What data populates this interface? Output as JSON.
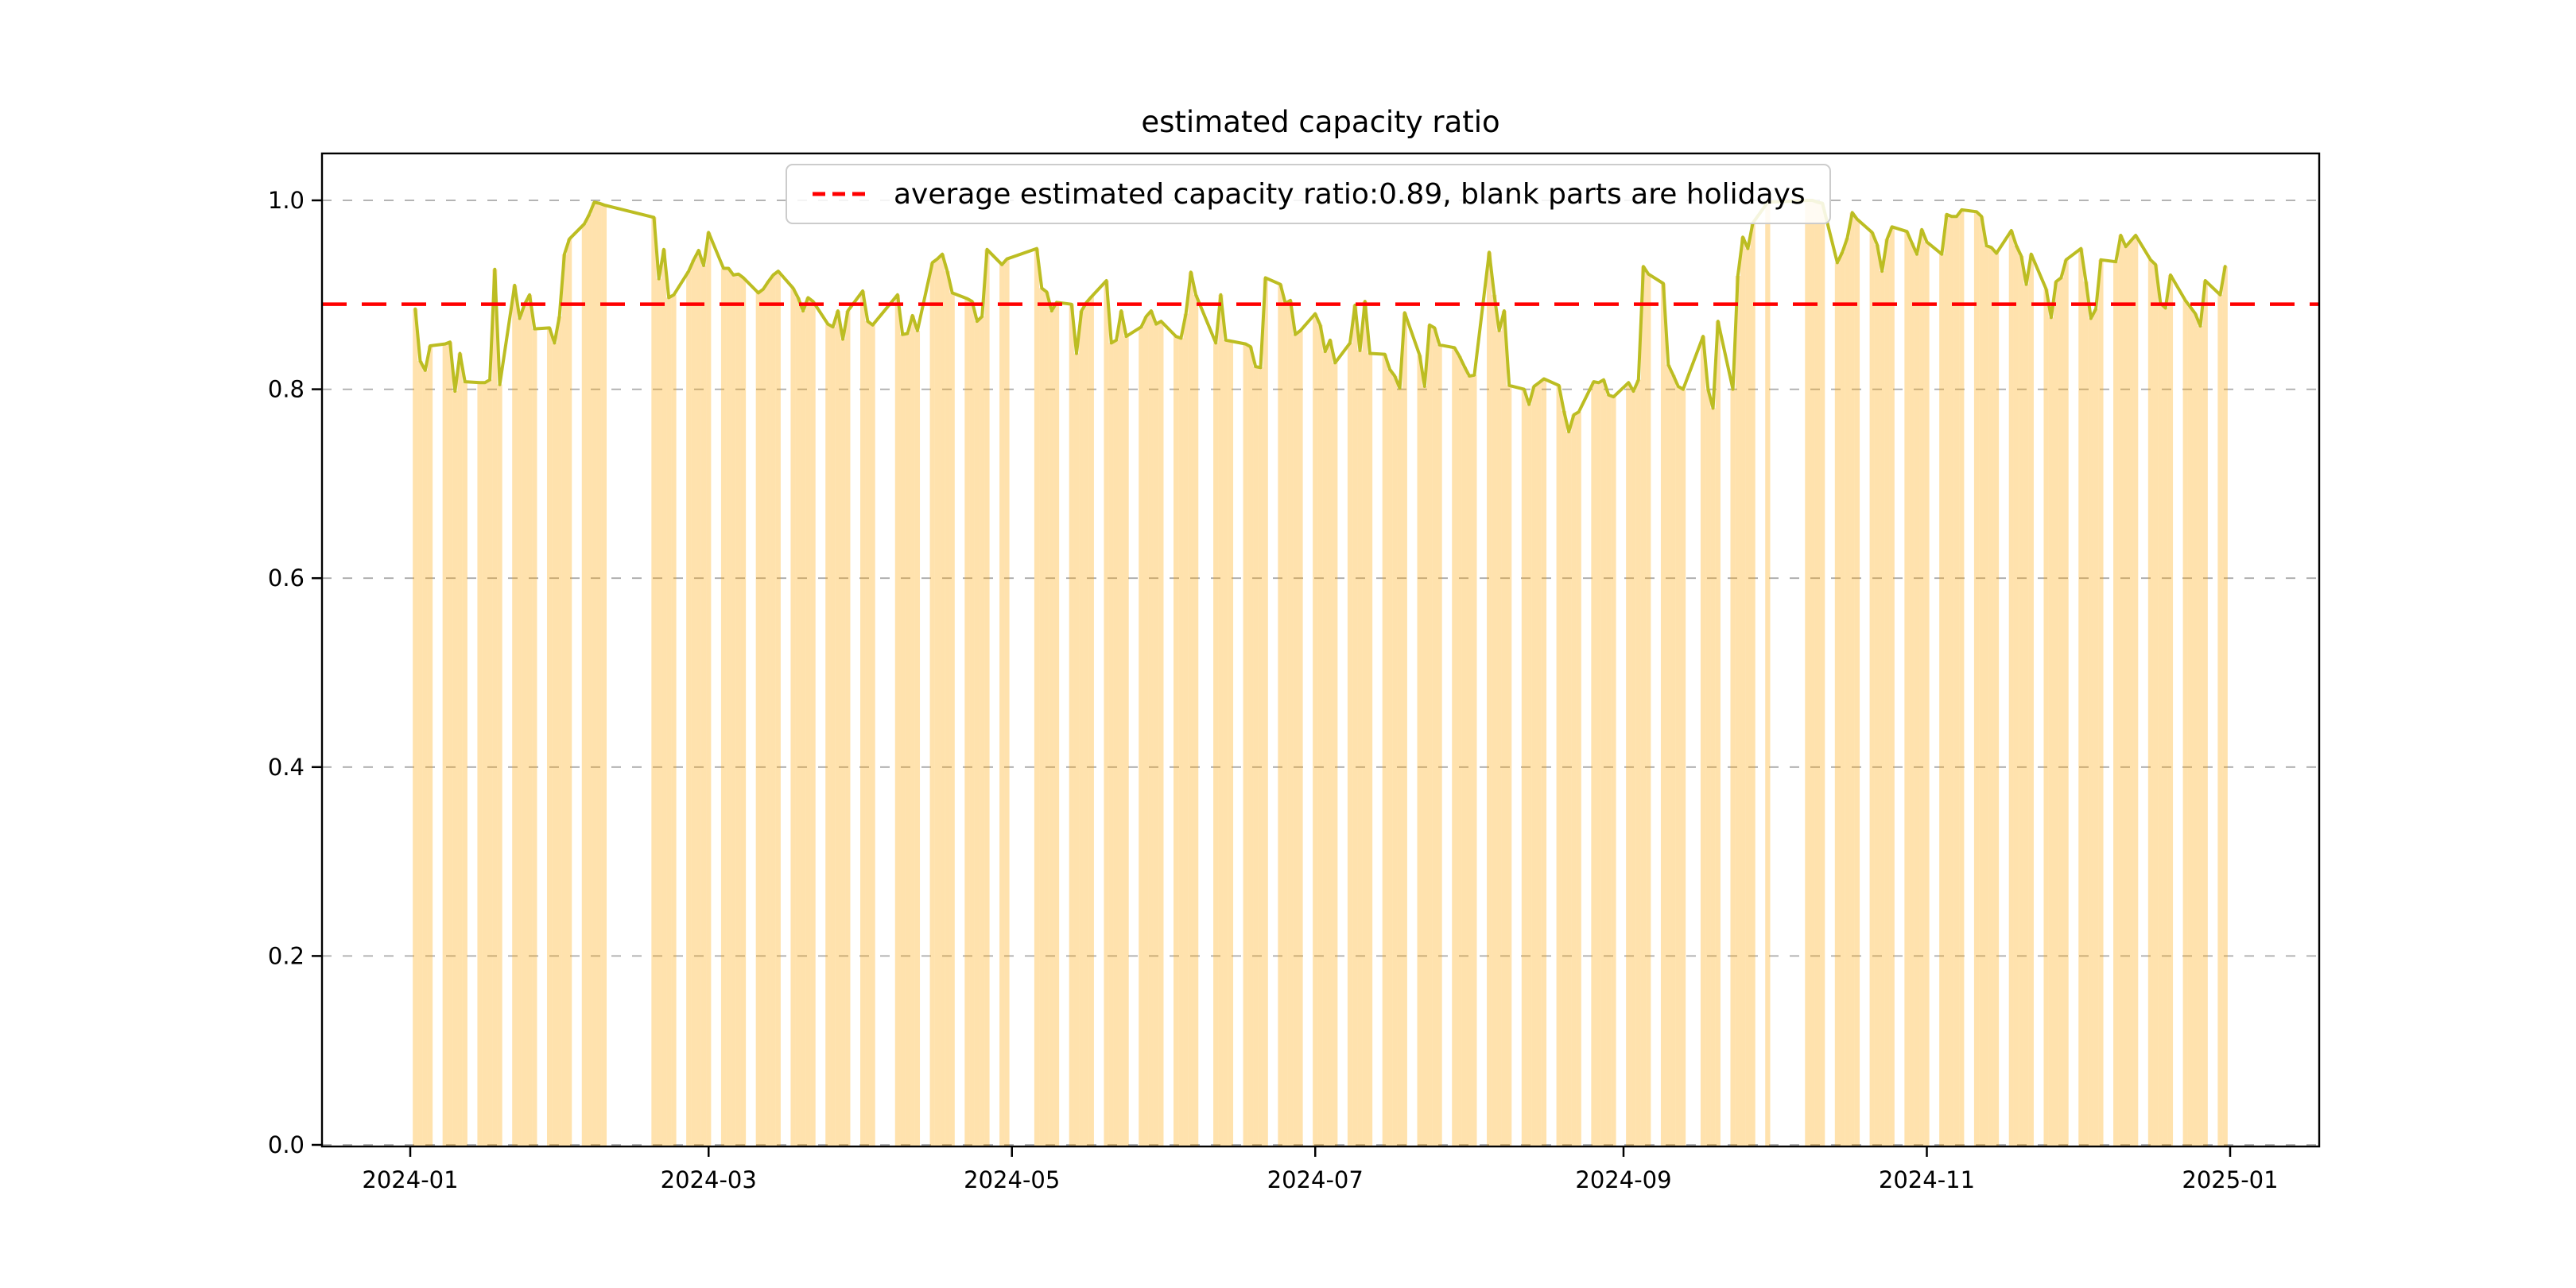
{
  "title": "estimated capacity ratio",
  "legend": {
    "label": "average estimated capacity ratio:0.89, blank parts are holidays"
  },
  "average_line": {
    "value": 0.89,
    "color": "#ff0000"
  },
  "style": {
    "bar_color": "#ffa500",
    "bar_opacity": 0.32,
    "line_color": "#bcbd22",
    "grid_color": "#aaaaaa",
    "spine_color": "#000000",
    "tick_label_color": "#000000"
  },
  "axes": {
    "ylim": [
      0,
      1.05
    ],
    "y_ticks": [
      0.0,
      0.2,
      0.4,
      0.6,
      0.8,
      1.0
    ],
    "y_tick_labels": [
      "0.0",
      "0.2",
      "0.4",
      "0.6",
      "0.8",
      "1.0"
    ],
    "x_tick_labels": [
      "2024-01",
      "2024-03",
      "2024-05",
      "2024-07",
      "2024-09",
      "2024-11",
      "2025-01"
    ],
    "x_tick_dates": [
      "2024-01-01",
      "2024-03-01",
      "2024-05-01",
      "2024-07-01",
      "2024-09-01",
      "2024-11-01",
      "2025-01-01"
    ],
    "grid": "horizontal dashed"
  },
  "chart_data": {
    "type": "bar+line",
    "title": "estimated capacity ratio",
    "x_start": "2024-01-01",
    "x_end": "2025-01-01",
    "series_name": "daily estimated capacity ratio (orange bars with olive line on top)",
    "average": 0.89,
    "holidays_blank": [
      "2024-01-01",
      "2024-02-10 to 2024-02-18",
      "2024-04-04 to 2024-04-05",
      "2024-05-01 to 2024-05-03",
      "2024-06-08 to 2024-06-10",
      "2024-09-14 to 2024-09-16",
      "2024-10-01 to 2024-10-07",
      "all Saturdays and Sundays"
    ],
    "points": [
      [
        "2024-01-02",
        0.885
      ],
      [
        "2024-01-03",
        0.83
      ],
      [
        "2024-01-04",
        0.82
      ],
      [
        "2024-01-05",
        0.846
      ],
      [
        "2024-01-08",
        0.848
      ],
      [
        "2024-01-09",
        0.85
      ],
      [
        "2024-01-10",
        0.798
      ],
      [
        "2024-01-11",
        0.838
      ],
      [
        "2024-01-12",
        0.808
      ],
      [
        "2024-01-15",
        0.807
      ],
      [
        "2024-01-16",
        0.807
      ],
      [
        "2024-01-17",
        0.81
      ],
      [
        "2024-01-18",
        0.927
      ],
      [
        "2024-01-19",
        0.805
      ],
      [
        "2024-01-22",
        0.91
      ],
      [
        "2024-01-23",
        0.875
      ],
      [
        "2024-01-24",
        0.89
      ],
      [
        "2024-01-25",
        0.9
      ],
      [
        "2024-01-26",
        0.864
      ],
      [
        "2024-01-29",
        0.865
      ],
      [
        "2024-01-30",
        0.849
      ],
      [
        "2024-01-31",
        0.877
      ],
      [
        "2024-02-01",
        0.943
      ],
      [
        "2024-02-02",
        0.959
      ],
      [
        "2024-02-05",
        0.975
      ],
      [
        "2024-02-06",
        0.985
      ],
      [
        "2024-02-07",
        0.998
      ],
      [
        "2024-02-08",
        0.997
      ],
      [
        "2024-02-09",
        0.995
      ],
      [
        "2024-02-19",
        0.982
      ],
      [
        "2024-02-20",
        0.917
      ],
      [
        "2024-02-21",
        0.948
      ],
      [
        "2024-02-22",
        0.897
      ],
      [
        "2024-02-23",
        0.9
      ],
      [
        "2024-02-26",
        0.925
      ],
      [
        "2024-02-27",
        0.937
      ],
      [
        "2024-02-28",
        0.947
      ],
      [
        "2024-02-29",
        0.931
      ],
      [
        "2024-03-01",
        0.966
      ],
      [
        "2024-03-04",
        0.928
      ],
      [
        "2024-03-05",
        0.928
      ],
      [
        "2024-03-06",
        0.921
      ],
      [
        "2024-03-07",
        0.922
      ],
      [
        "2024-03-08",
        0.918
      ],
      [
        "2024-03-11",
        0.902
      ],
      [
        "2024-03-12",
        0.906
      ],
      [
        "2024-03-13",
        0.914
      ],
      [
        "2024-03-14",
        0.921
      ],
      [
        "2024-03-15",
        0.925
      ],
      [
        "2024-03-18",
        0.907
      ],
      [
        "2024-03-19",
        0.897
      ],
      [
        "2024-03-20",
        0.883
      ],
      [
        "2024-03-21",
        0.897
      ],
      [
        "2024-03-22",
        0.893
      ],
      [
        "2024-03-25",
        0.869
      ],
      [
        "2024-03-26",
        0.866
      ],
      [
        "2024-03-27",
        0.883
      ],
      [
        "2024-03-28",
        0.853
      ],
      [
        "2024-03-29",
        0.883
      ],
      [
        "2024-04-01",
        0.904
      ],
      [
        "2024-04-02",
        0.872
      ],
      [
        "2024-04-03",
        0.868
      ],
      [
        "2024-04-08",
        0.9
      ],
      [
        "2024-04-09",
        0.858
      ],
      [
        "2024-04-10",
        0.859
      ],
      [
        "2024-04-11",
        0.878
      ],
      [
        "2024-04-12",
        0.862
      ],
      [
        "2024-04-15",
        0.934
      ],
      [
        "2024-04-16",
        0.938
      ],
      [
        "2024-04-17",
        0.943
      ],
      [
        "2024-04-18",
        0.925
      ],
      [
        "2024-04-19",
        0.902
      ],
      [
        "2024-04-22",
        0.896
      ],
      [
        "2024-04-23",
        0.893
      ],
      [
        "2024-04-24",
        0.872
      ],
      [
        "2024-04-25",
        0.877
      ],
      [
        "2024-04-26",
        0.948
      ],
      [
        "2024-04-29",
        0.932
      ],
      [
        "2024-04-30",
        0.938
      ],
      [
        "2024-05-06",
        0.949
      ],
      [
        "2024-05-07",
        0.907
      ],
      [
        "2024-05-08",
        0.903
      ],
      [
        "2024-05-09",
        0.883
      ],
      [
        "2024-05-10",
        0.892
      ],
      [
        "2024-05-13",
        0.89
      ],
      [
        "2024-05-14",
        0.838
      ],
      [
        "2024-05-15",
        0.883
      ],
      [
        "2024-05-16",
        0.892
      ],
      [
        "2024-05-17",
        0.898
      ],
      [
        "2024-05-20",
        0.915
      ],
      [
        "2024-05-21",
        0.849
      ],
      [
        "2024-05-22",
        0.852
      ],
      [
        "2024-05-23",
        0.883
      ],
      [
        "2024-05-24",
        0.856
      ],
      [
        "2024-05-27",
        0.866
      ],
      [
        "2024-05-28",
        0.877
      ],
      [
        "2024-05-29",
        0.883
      ],
      [
        "2024-05-30",
        0.869
      ],
      [
        "2024-05-31",
        0.872
      ],
      [
        "2024-06-03",
        0.856
      ],
      [
        "2024-06-04",
        0.854
      ],
      [
        "2024-06-05",
        0.88
      ],
      [
        "2024-06-06",
        0.924
      ],
      [
        "2024-06-07",
        0.9
      ],
      [
        "2024-06-11",
        0.849
      ],
      [
        "2024-06-12",
        0.9
      ],
      [
        "2024-06-13",
        0.852
      ],
      [
        "2024-06-14",
        0.851
      ],
      [
        "2024-06-17",
        0.848
      ],
      [
        "2024-06-18",
        0.845
      ],
      [
        "2024-06-19",
        0.824
      ],
      [
        "2024-06-20",
        0.823
      ],
      [
        "2024-06-21",
        0.918
      ],
      [
        "2024-06-24",
        0.911
      ],
      [
        "2024-06-25",
        0.891
      ],
      [
        "2024-06-26",
        0.894
      ],
      [
        "2024-06-27",
        0.858
      ],
      [
        "2024-06-28",
        0.862
      ],
      [
        "2024-07-01",
        0.88
      ],
      [
        "2024-07-02",
        0.868
      ],
      [
        "2024-07-03",
        0.84
      ],
      [
        "2024-07-04",
        0.852
      ],
      [
        "2024-07-05",
        0.828
      ],
      [
        "2024-07-08",
        0.849
      ],
      [
        "2024-07-09",
        0.889
      ],
      [
        "2024-07-10",
        0.841
      ],
      [
        "2024-07-11",
        0.893
      ],
      [
        "2024-07-12",
        0.838
      ],
      [
        "2024-07-15",
        0.837
      ],
      [
        "2024-07-16",
        0.821
      ],
      [
        "2024-07-17",
        0.814
      ],
      [
        "2024-07-18",
        0.801
      ],
      [
        "2024-07-19",
        0.881
      ],
      [
        "2024-07-22",
        0.836
      ],
      [
        "2024-07-23",
        0.803
      ],
      [
        "2024-07-24",
        0.868
      ],
      [
        "2024-07-25",
        0.865
      ],
      [
        "2024-07-26",
        0.847
      ],
      [
        "2024-07-29",
        0.844
      ],
      [
        "2024-07-30",
        0.835
      ],
      [
        "2024-07-31",
        0.824
      ],
      [
        "2024-08-01",
        0.814
      ],
      [
        "2024-08-02",
        0.815
      ],
      [
        "2024-08-05",
        0.945
      ],
      [
        "2024-08-06",
        0.9
      ],
      [
        "2024-08-07",
        0.862
      ],
      [
        "2024-08-08",
        0.883
      ],
      [
        "2024-08-09",
        0.804
      ],
      [
        "2024-08-12",
        0.8
      ],
      [
        "2024-08-13",
        0.784
      ],
      [
        "2024-08-14",
        0.803
      ],
      [
        "2024-08-15",
        0.807
      ],
      [
        "2024-08-16",
        0.811
      ],
      [
        "2024-08-19",
        0.804
      ],
      [
        "2024-08-20",
        0.777
      ],
      [
        "2024-08-21",
        0.755
      ],
      [
        "2024-08-22",
        0.773
      ],
      [
        "2024-08-23",
        0.776
      ],
      [
        "2024-08-26",
        0.808
      ],
      [
        "2024-08-27",
        0.807
      ],
      [
        "2024-08-28",
        0.81
      ],
      [
        "2024-08-29",
        0.794
      ],
      [
        "2024-08-30",
        0.792
      ],
      [
        "2024-09-02",
        0.807
      ],
      [
        "2024-09-03",
        0.798
      ],
      [
        "2024-09-04",
        0.81
      ],
      [
        "2024-09-05",
        0.93
      ],
      [
        "2024-09-06",
        0.922
      ],
      [
        "2024-09-09",
        0.912
      ],
      [
        "2024-09-10",
        0.826
      ],
      [
        "2024-09-11",
        0.815
      ],
      [
        "2024-09-12",
        0.803
      ],
      [
        "2024-09-13",
        0.8
      ],
      [
        "2024-09-17",
        0.856
      ],
      [
        "2024-09-18",
        0.8
      ],
      [
        "2024-09-19",
        0.78
      ],
      [
        "2024-09-20",
        0.872
      ],
      [
        "2024-09-23",
        0.8
      ],
      [
        "2024-09-24",
        0.92
      ],
      [
        "2024-09-25",
        0.961
      ],
      [
        "2024-09-26",
        0.949
      ],
      [
        "2024-09-27",
        0.976
      ],
      [
        "2024-09-30",
        0.998
      ],
      [
        "2024-10-08",
        1.0
      ],
      [
        "2024-10-09",
        1.0
      ],
      [
        "2024-10-10",
        0.998
      ],
      [
        "2024-10-11",
        0.997
      ],
      [
        "2024-10-14",
        0.934
      ],
      [
        "2024-10-15",
        0.945
      ],
      [
        "2024-10-16",
        0.96
      ],
      [
        "2024-10-17",
        0.987
      ],
      [
        "2024-10-18",
        0.98
      ],
      [
        "2024-10-21",
        0.966
      ],
      [
        "2024-10-22",
        0.953
      ],
      [
        "2024-10-23",
        0.925
      ],
      [
        "2024-10-24",
        0.959
      ],
      [
        "2024-10-25",
        0.972
      ],
      [
        "2024-10-28",
        0.967
      ],
      [
        "2024-10-29",
        0.955
      ],
      [
        "2024-10-30",
        0.943
      ],
      [
        "2024-10-31",
        0.969
      ],
      [
        "2024-11-01",
        0.956
      ],
      [
        "2024-11-04",
        0.943
      ],
      [
        "2024-11-05",
        0.985
      ],
      [
        "2024-11-06",
        0.983
      ],
      [
        "2024-11-07",
        0.983
      ],
      [
        "2024-11-08",
        0.99
      ],
      [
        "2024-11-11",
        0.988
      ],
      [
        "2024-11-12",
        0.983
      ],
      [
        "2024-11-13",
        0.952
      ],
      [
        "2024-11-14",
        0.95
      ],
      [
        "2024-11-15",
        0.944
      ],
      [
        "2024-11-18",
        0.968
      ],
      [
        "2024-11-19",
        0.952
      ],
      [
        "2024-11-20",
        0.941
      ],
      [
        "2024-11-21",
        0.911
      ],
      [
        "2024-11-22",
        0.943
      ],
      [
        "2024-11-25",
        0.906
      ],
      [
        "2024-11-26",
        0.876
      ],
      [
        "2024-11-27",
        0.914
      ],
      [
        "2024-11-28",
        0.918
      ],
      [
        "2024-11-29",
        0.937
      ],
      [
        "2024-12-02",
        0.949
      ],
      [
        "2024-12-03",
        0.914
      ],
      [
        "2024-12-04",
        0.875
      ],
      [
        "2024-12-05",
        0.885
      ],
      [
        "2024-12-06",
        0.937
      ],
      [
        "2024-12-09",
        0.935
      ],
      [
        "2024-12-10",
        0.963
      ],
      [
        "2024-12-11",
        0.951
      ],
      [
        "2024-12-12",
        0.957
      ],
      [
        "2024-12-13",
        0.963
      ],
      [
        "2024-12-16",
        0.937
      ],
      [
        "2024-12-17",
        0.932
      ],
      [
        "2024-12-18",
        0.891
      ],
      [
        "2024-12-19",
        0.886
      ],
      [
        "2024-12-20",
        0.921
      ],
      [
        "2024-12-23",
        0.894
      ],
      [
        "2024-12-24",
        0.887
      ],
      [
        "2024-12-25",
        0.88
      ],
      [
        "2024-12-26",
        0.867
      ],
      [
        "2024-12-27",
        0.915
      ],
      [
        "2024-12-30",
        0.9
      ],
      [
        "2024-12-31",
        0.93
      ]
    ]
  }
}
